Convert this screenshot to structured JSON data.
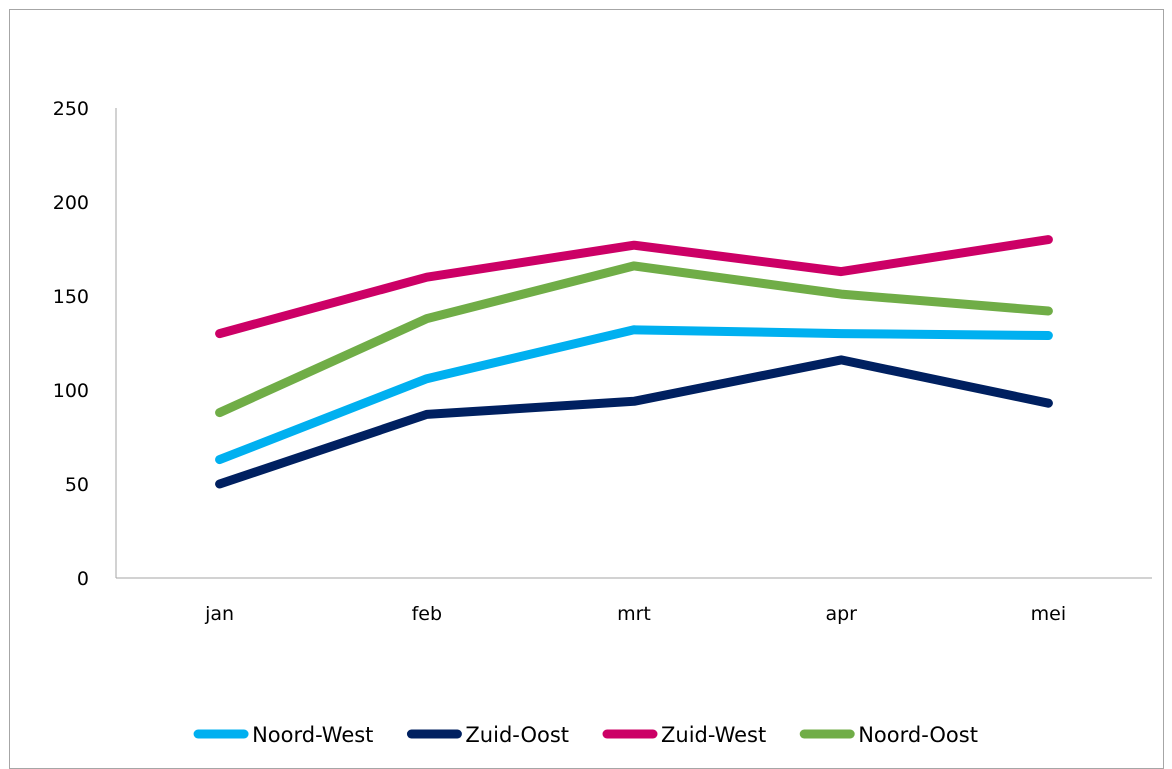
{
  "chart_data": {
    "type": "line",
    "title": "",
    "xlabel": "",
    "ylabel": "",
    "categories": [
      "jan",
      "feb",
      "mrt",
      "apr",
      "mei"
    ],
    "ylim": [
      0,
      250
    ],
    "yticks": [
      0,
      50,
      100,
      150,
      200,
      250
    ],
    "grid": false,
    "legend_position": "bottom",
    "series": [
      {
        "name": "Noord-West",
        "color": "#00b0f0",
        "values": [
          63,
          106,
          132,
          130,
          129
        ]
      },
      {
        "name": "Zuid-Oost",
        "color": "#002060",
        "values": [
          50,
          87,
          94,
          116,
          93
        ]
      },
      {
        "name": "Zuid-West",
        "color": "#cc0066",
        "values": [
          130,
          160,
          177,
          163,
          180
        ]
      },
      {
        "name": "Noord-Oost",
        "color": "#70ad47",
        "values": [
          88,
          138,
          166,
          151,
          142
        ]
      }
    ]
  }
}
